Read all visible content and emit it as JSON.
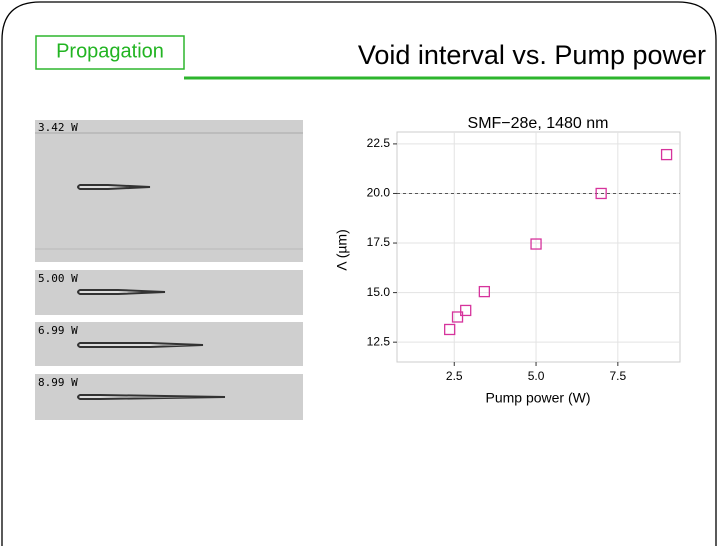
{
  "header": {
    "tag": "Propagation",
    "title": "Void interval vs. Pump power"
  },
  "images": [
    {
      "label": "3.42 W"
    },
    {
      "label": "5.00 W"
    },
    {
      "label": "6.99 W"
    },
    {
      "label": "8.99 W"
    }
  ],
  "chart_data": {
    "type": "scatter",
    "title": "SMF−28e, 1480 nm",
    "x_label": "Pump power (W)",
    "y_label": "Λ (µm)",
    "x": [
      2.36,
      2.6,
      2.85,
      3.42,
      5.0,
      6.99,
      8.99
    ],
    "values": [
      13.14,
      13.77,
      14.1,
      15.05,
      17.45,
      20.0,
      21.96
    ],
    "color": "#d6339c",
    "xlim": [
      0.75,
      9.4
    ],
    "ylim": [
      11.5,
      23.1
    ],
    "xticks": [
      {
        "value": 2.5,
        "label": "2.5"
      },
      {
        "value": 5,
        "label": "5.0"
      },
      {
        "value": 7.5,
        "label": "7.5"
      }
    ],
    "yticks": [
      {
        "value": 12.5,
        "label": "12.5"
      },
      {
        "value": 15,
        "label": "15.0"
      },
      {
        "value": 17.5,
        "label": "17.5"
      },
      {
        "value": 20,
        "label": "20.0"
      },
      {
        "value": 22.5,
        "label": "22.5"
      }
    ],
    "hline": 20,
    "grid": true
  }
}
